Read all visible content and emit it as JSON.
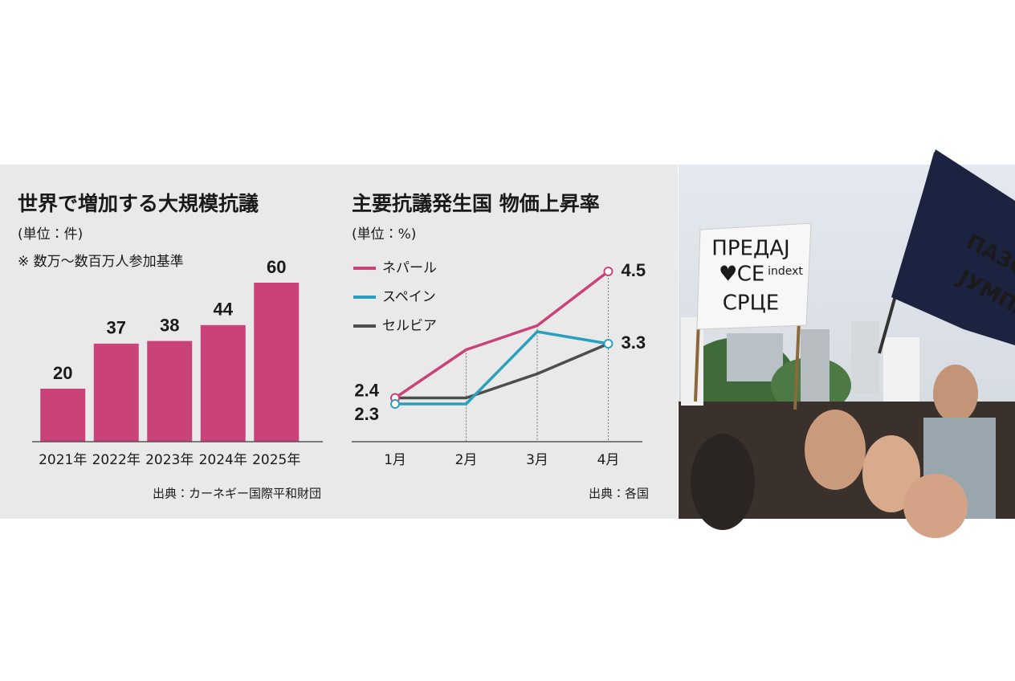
{
  "chart_data": [
    {
      "type": "bar",
      "title": "世界で増加する大規模抗議",
      "subtitle": "(単位：件)",
      "note": "※ 数万〜数百万人参加基準",
      "categories": [
        "2021年",
        "2022年",
        "2023年",
        "2024年",
        "2025年"
      ],
      "values": [
        20,
        37,
        38,
        44,
        60
      ],
      "color": "#c9437a",
      "source": "出典：カーネギー国際平和財団"
    },
    {
      "type": "line",
      "title": "主要抗議発生国 物価上昇率",
      "subtitle": "(単位：%)",
      "categories": [
        "1月",
        "2月",
        "3月",
        "4月"
      ],
      "series": [
        {
          "name": "ネパール",
          "color": "#c9437a",
          "values": [
            2.4,
            3.2,
            3.6,
            4.5
          ]
        },
        {
          "name": "スペイン",
          "color": "#2aa0bf",
          "values": [
            2.3,
            2.3,
            3.5,
            3.3
          ]
        },
        {
          "name": "セルビア",
          "color": "#4d4d4d",
          "values": [
            2.4,
            2.4,
            2.8,
            3.3
          ]
        }
      ],
      "source": "出典：各国"
    }
  ],
  "photo": {
    "banner": [
      "ПРЕДАЈ",
      "СЕ",
      "СРЦЕ"
    ],
    "banner_logo": "indext",
    "flag": [
      "ПАЗОВА",
      "ЈУМПА"
    ]
  }
}
